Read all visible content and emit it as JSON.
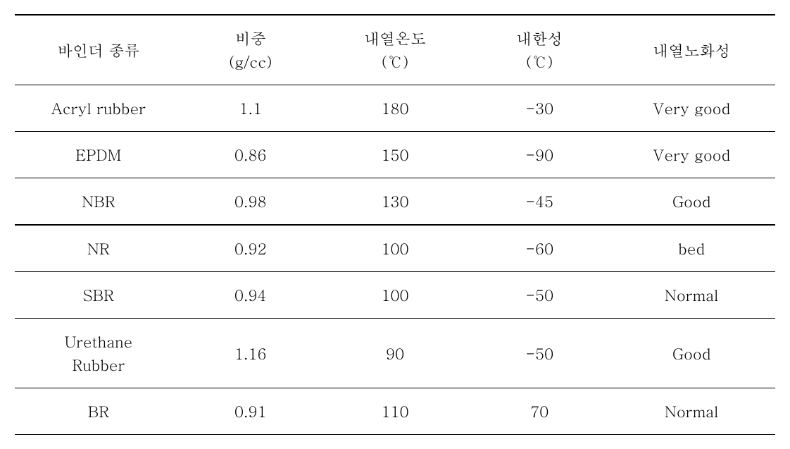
{
  "table": {
    "colors": {
      "text": "#000000",
      "border": "#000000",
      "background": "#ffffff"
    },
    "typography": {
      "font_family": "Batang, Times New Roman, serif",
      "header_fontsize": 22,
      "cell_fontsize": 22
    },
    "border_widths": {
      "top_rule": 2,
      "header_rule": 1,
      "row_rule": 1,
      "heavy_rule": 2
    },
    "headers": {
      "col1": "바인더 종류",
      "col2_main": "비중",
      "col2_sub": "(g/cc)",
      "col3_main": "내열온도",
      "col3_sub": "(℃)",
      "col4_main": "내한성",
      "col4_sub": "(℃)",
      "col5": "내열노화성"
    },
    "column_alignment": [
      "center",
      "center",
      "center",
      "center",
      "center"
    ],
    "column_widths_pct": [
      22,
      18,
      20,
      18,
      22
    ],
    "rows": [
      {
        "binder": "Acryl rubber",
        "density": "1.1",
        "heat_temp": "180",
        "cold_temp": "-30",
        "aging": "Very good",
        "heavy_border": false
      },
      {
        "binder": "EPDM",
        "density": "0.86",
        "heat_temp": "150",
        "cold_temp": "-90",
        "aging": "Very good",
        "heavy_border": false
      },
      {
        "binder": "NBR",
        "density": "0.98",
        "heat_temp": "130",
        "cold_temp": "-45",
        "aging": "Good",
        "heavy_border": true
      },
      {
        "binder": "NR",
        "density": "0.92",
        "heat_temp": "100",
        "cold_temp": "-60",
        "aging": "bed",
        "heavy_border": false
      },
      {
        "binder": "SBR",
        "density": "0.94",
        "heat_temp": "100",
        "cold_temp": "-50",
        "aging": "Normal",
        "heavy_border": false
      },
      {
        "binder_line1": "Urethane",
        "binder_line2": "Rubber",
        "density": "1.16",
        "heat_temp": "90",
        "cold_temp": "-50",
        "aging": "Good",
        "heavy_border": false,
        "multiline": true
      },
      {
        "binder": "BR",
        "density": "0.91",
        "heat_temp": "110",
        "cold_temp": "70",
        "aging": "Normal",
        "heavy_border": false
      }
    ]
  }
}
